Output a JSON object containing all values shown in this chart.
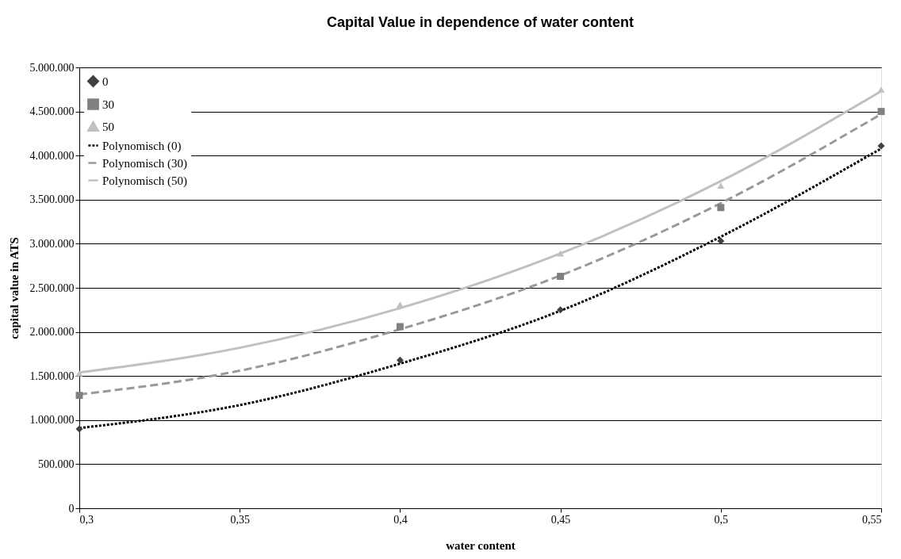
{
  "chart_data": {
    "type": "scatter",
    "title": "Capital Value in dependence of water content",
    "xlabel": "water content",
    "ylabel": "capital value in ATS",
    "xlim": [
      0.3,
      0.55
    ],
    "xticks": [
      {
        "value": 0.3,
        "label": "0,3"
      },
      {
        "value": 0.35,
        "label": "0,35"
      },
      {
        "value": 0.4,
        "label": "0,4"
      },
      {
        "value": 0.45,
        "label": "0,45"
      },
      {
        "value": 0.5,
        "label": "0,5"
      },
      {
        "value": 0.55,
        "label": "0,55"
      }
    ],
    "ylim": [
      0,
      5000000
    ],
    "yticks": [
      {
        "value": 0,
        "label": "0"
      },
      {
        "value": 500000,
        "label": "500.000"
      },
      {
        "value": 1000000,
        "label": "1.000.000"
      },
      {
        "value": 1500000,
        "label": "1.500.000"
      },
      {
        "value": 2000000,
        "label": "2.000.000"
      },
      {
        "value": 2500000,
        "label": "2.500.000"
      },
      {
        "value": 3000000,
        "label": "3.000.000"
      },
      {
        "value": 3500000,
        "label": "3.500.000"
      },
      {
        "value": 4000000,
        "label": "4.000.000"
      },
      {
        "value": 4500000,
        "label": "4.500.000"
      },
      {
        "value": 5000000,
        "label": "5.000.000"
      }
    ],
    "grid": "y",
    "legend": "top left",
    "x": [
      0.3,
      0.4,
      0.45,
      0.5,
      0.55
    ],
    "series": [
      {
        "name": "0",
        "type": "scatter",
        "marker": "diamond",
        "color": "#404040",
        "values": [
          900000,
          1680000,
          2250000,
          3030000,
          4110000
        ]
      },
      {
        "name": "30",
        "type": "scatter",
        "marker": "square",
        "color": "#808080",
        "values": [
          1280000,
          2060000,
          2630000,
          3410000,
          4500000
        ]
      },
      {
        "name": "50",
        "type": "scatter",
        "marker": "triangle",
        "color": "#c0c0c0",
        "values": [
          1530000,
          2310000,
          2890000,
          3660000,
          4750000
        ]
      },
      {
        "name": "Polynomisch (0)",
        "type": "line",
        "line_style": "dotted",
        "color": "#000000",
        "x": [
          0.3,
          0.35,
          0.4,
          0.45,
          0.5,
          0.55
        ],
        "values": [
          910000,
          1170000,
          1640000,
          2240000,
          3080000,
          4080000
        ]
      },
      {
        "name": "Polynomisch (30)",
        "type": "line",
        "line_style": "dashed",
        "color": "#999999",
        "x": [
          0.3,
          0.35,
          0.4,
          0.45,
          0.5,
          0.55
        ],
        "values": [
          1290000,
          1560000,
          2030000,
          2640000,
          3460000,
          4470000
        ]
      },
      {
        "name": "Polynomisch (50)",
        "type": "line",
        "line_style": "solid",
        "color": "#c0c0c0",
        "x": [
          0.3,
          0.35,
          0.4,
          0.45,
          0.5,
          0.55
        ],
        "values": [
          1540000,
          1820000,
          2270000,
          2890000,
          3710000,
          4730000
        ]
      }
    ]
  }
}
